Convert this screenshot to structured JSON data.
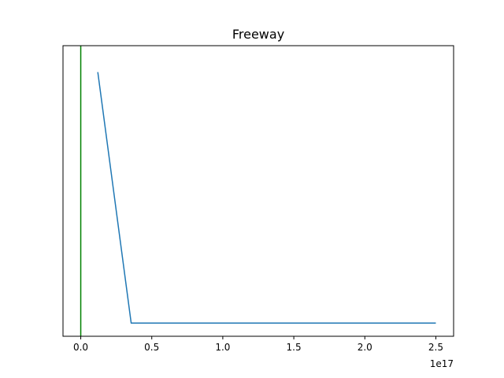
{
  "chart_data": {
    "type": "line",
    "title": "Freeway",
    "xlabel": "",
    "ylabel": "",
    "x_offset_label": "1e17",
    "xlim": [
      -0.125,
      2.625
    ],
    "ylim": [
      0,
      1.1
    ],
    "x_ticks": [
      0.0,
      0.5,
      1.0,
      1.5,
      2.0,
      2.5
    ],
    "x_tick_labels": [
      "0.0",
      "0.5",
      "1.0",
      "1.5",
      "2.0",
      "2.5"
    ],
    "y_ticks_shown": false,
    "grid": false,
    "series": [
      {
        "color": "#1f77b4",
        "x": [
          0.12,
          0.355,
          2.5
        ],
        "y": [
          1.0,
          0.05,
          0.05
        ]
      }
    ],
    "vertical_lines": [
      {
        "x": 0.0,
        "color": "#008000"
      }
    ]
  }
}
